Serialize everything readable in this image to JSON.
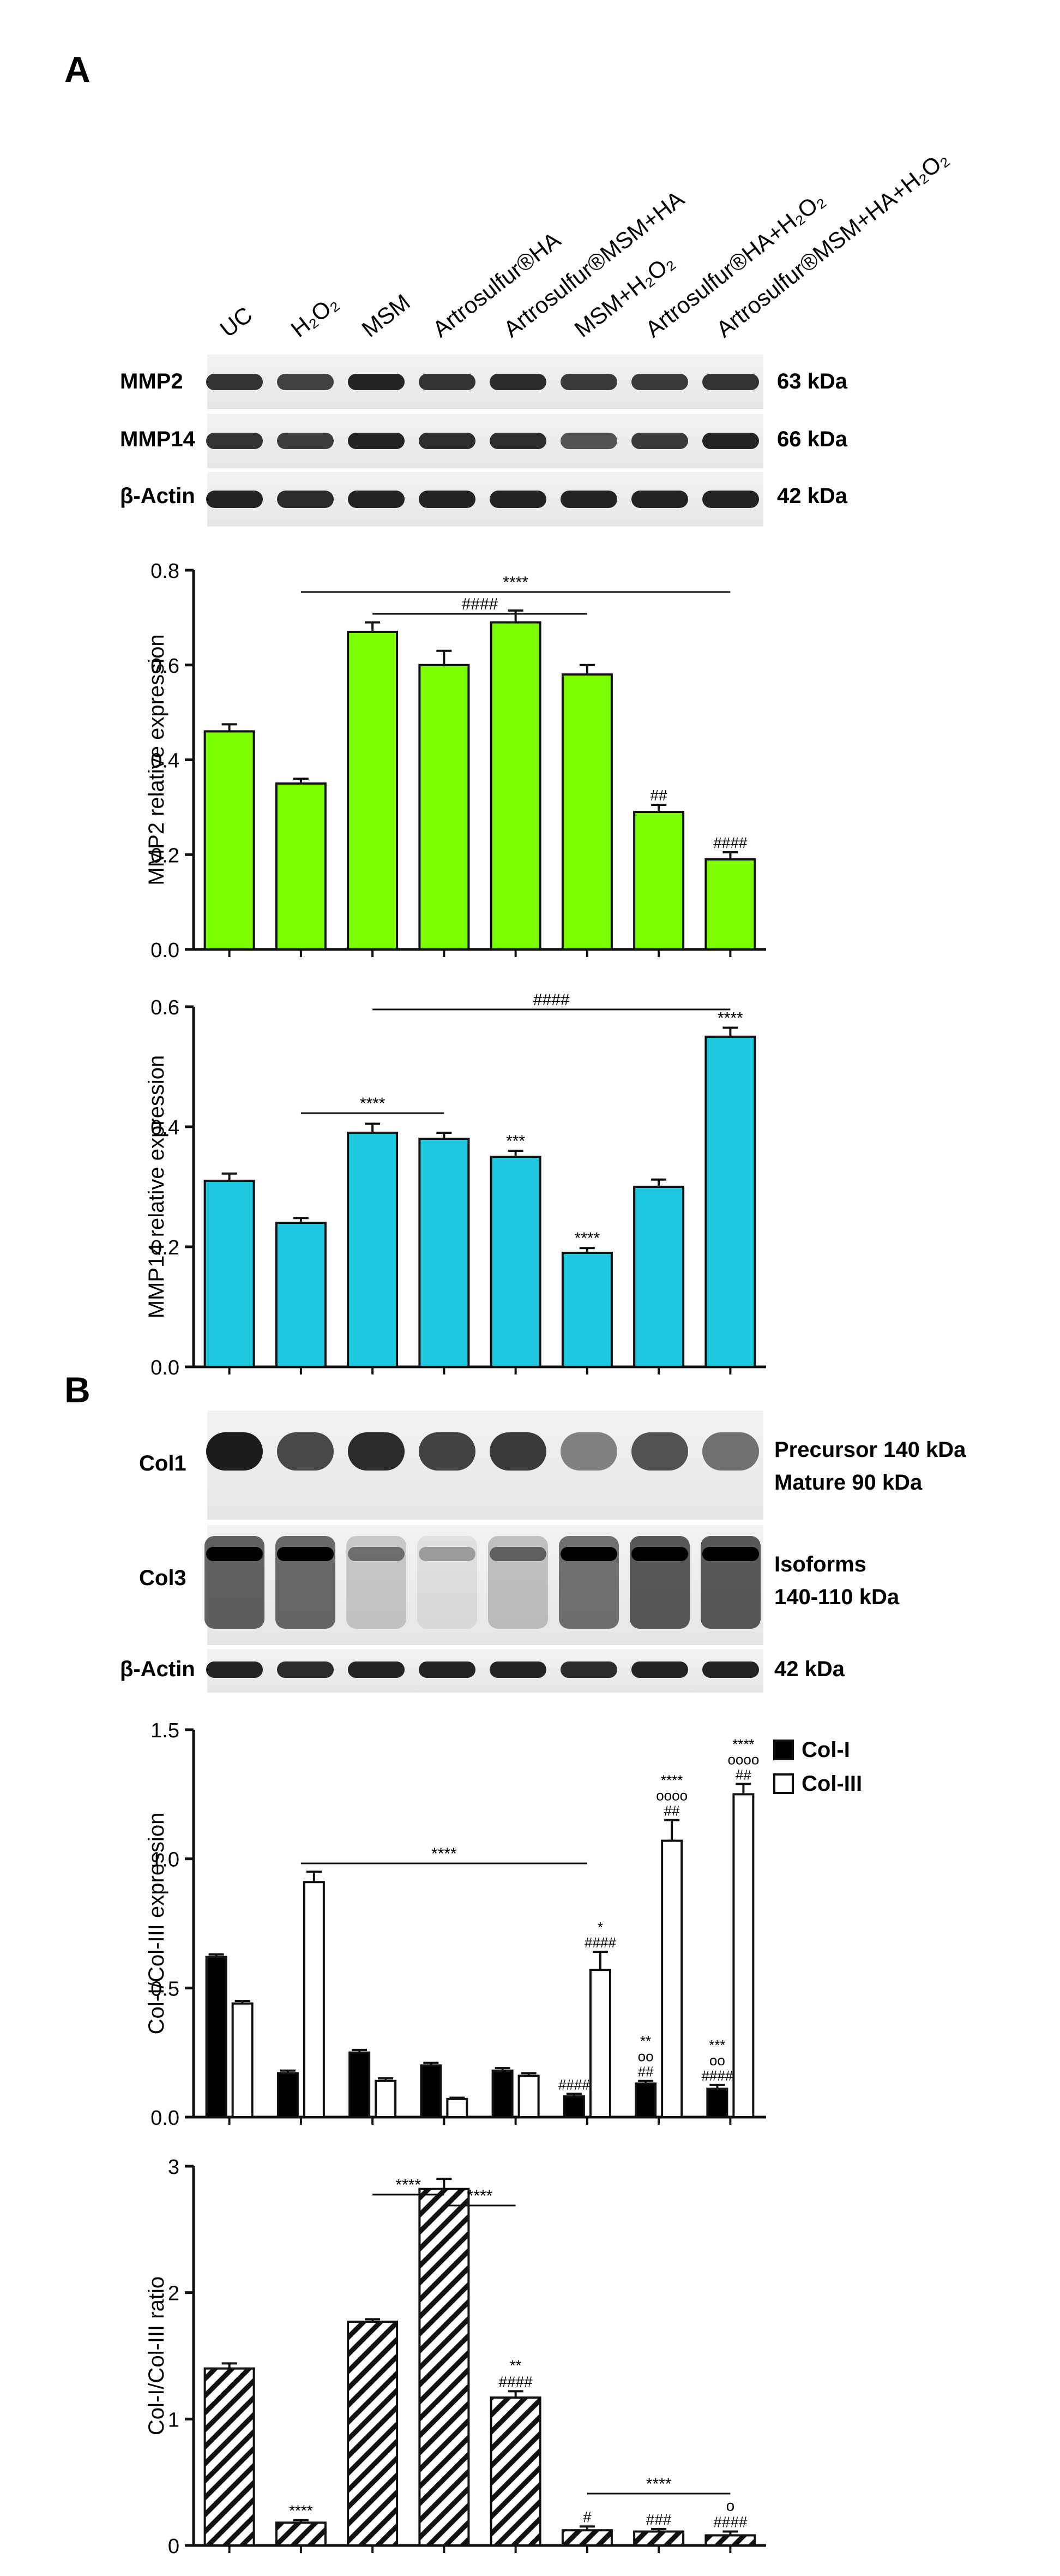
{
  "panels": {
    "a": "A",
    "b": "B"
  },
  "lanes": [
    "UC",
    "H₂O₂",
    "MSM",
    "Artrosulfur®HA",
    "Artrosulfur®MSM+HA",
    "MSM+H₂O₂",
    "Artrosulfur®HA+H₂O₂",
    "Artrosulfur®MSM+HA+H₂O₂"
  ],
  "blots_a": [
    {
      "label": "MMP2",
      "size": "63 kDa"
    },
    {
      "label": "MMP14",
      "size": "66 kDa"
    },
    {
      "label": "β-Actin",
      "size": "42 kDa"
    }
  ],
  "blots_b": [
    {
      "label": "Col1",
      "size_lines": [
        "Precursor 140 kDa",
        "Mature 90 kDa"
      ]
    },
    {
      "label": "Col3",
      "size_lines": [
        "Isoforms",
        "140-110 kDa"
      ]
    },
    {
      "label": "β-Actin",
      "size_lines": [
        "42 kDa"
      ]
    }
  ],
  "colors": {
    "mmp2": "#7cfc00",
    "mmp14": "#1ec8e0",
    "col1": "#000000",
    "col3": "#ffffff"
  },
  "chart_data": [
    {
      "type": "bar",
      "ylabel": "MMP2 relative expression",
      "ylim": [
        0,
        0.8
      ],
      "yticks": [
        "0.0",
        "0.2",
        "0.4",
        "0.6",
        "0.8"
      ],
      "values": [
        0.46,
        0.35,
        0.67,
        0.6,
        0.69,
        0.58,
        0.29,
        0.19
      ],
      "errors": [
        0.015,
        0.01,
        0.02,
        0.03,
        0.025,
        0.02,
        0.015,
        0.015
      ],
      "bar_labels": [
        "",
        "",
        "",
        "",
        "",
        "",
        "##",
        "####"
      ],
      "brackets": [
        {
          "from": 1,
          "to": 7,
          "label": "****"
        },
        {
          "from": 2,
          "to": 5,
          "label": "####"
        }
      ]
    },
    {
      "type": "bar",
      "ylabel": "MMP14 relative expression",
      "ylim": [
        0,
        0.6
      ],
      "yticks": [
        "0.0",
        "0.2",
        "0.4",
        "0.6"
      ],
      "values": [
        0.31,
        0.24,
        0.39,
        0.38,
        0.35,
        0.19,
        0.3,
        0.55
      ],
      "errors": [
        0.012,
        0.008,
        0.015,
        0.01,
        0.01,
        0.008,
        0.012,
        0.015
      ],
      "bar_labels": [
        "",
        "",
        "",
        "",
        "***",
        "****",
        "",
        "****"
      ],
      "brackets": [
        {
          "from": 1,
          "to": 3,
          "label": "****"
        },
        {
          "from": 2,
          "to": 7,
          "label": "####"
        }
      ]
    },
    {
      "type": "bar",
      "ylabel": "Col-I/Col-III expression",
      "ylim": [
        0,
        1.5
      ],
      "yticks": [
        "0.0",
        "0.5",
        "1.0",
        "1.5"
      ],
      "legend": [
        "Col-I",
        "Col-III"
      ],
      "series": [
        {
          "name": "Col-I",
          "values": [
            0.62,
            0.17,
            0.25,
            0.2,
            0.18,
            0.08,
            0.13,
            0.11
          ],
          "errors": [
            0.01,
            0.01,
            0.01,
            0.01,
            0.01,
            0.01,
            0.01,
            0.015
          ]
        },
        {
          "name": "Col-III",
          "values": [
            0.44,
            0.91,
            0.14,
            0.07,
            0.16,
            0.57,
            1.07,
            1.25
          ],
          "errors": [
            0.01,
            0.04,
            0.01,
            0.005,
            0.01,
            0.07,
            0.08,
            0.04
          ]
        }
      ],
      "col1_labels": [
        [],
        [],
        [],
        [],
        [],
        [
          "####"
        ],
        [
          "**",
          "oo",
          "##"
        ],
        [
          "***",
          "oo",
          "####"
        ]
      ],
      "col3_labels": [
        [],
        [],
        [],
        [],
        [],
        [
          "*",
          "####"
        ],
        [
          "****",
          "oooo",
          "##"
        ],
        [
          "****",
          "oooo",
          "##"
        ]
      ],
      "brackets": [
        {
          "from": 1,
          "to": 5,
          "label": "****"
        }
      ]
    },
    {
      "type": "bar",
      "ylabel": "Col-I/Col-III ratio",
      "ylim": [
        0,
        3
      ],
      "yticks": [
        "0",
        "1",
        "2",
        "3"
      ],
      "values": [
        1.4,
        0.18,
        1.77,
        2.82,
        1.17,
        0.12,
        0.11,
        0.08
      ],
      "errors": [
        0.04,
        0.02,
        0.02,
        0.08,
        0.05,
        0.03,
        0.02,
        0.03
      ],
      "bar_labels": [
        [],
        [
          "****"
        ],
        [],
        [],
        [
          "**",
          "####"
        ],
        [
          "#"
        ],
        [
          "###"
        ],
        [
          "o",
          "####"
        ]
      ],
      "brackets": [
        {
          "from": 2,
          "to": 3,
          "label": "****"
        },
        {
          "from": 3,
          "to": 4,
          "label": "****"
        },
        {
          "from": 5,
          "to": 7,
          "label": "****"
        }
      ]
    }
  ]
}
